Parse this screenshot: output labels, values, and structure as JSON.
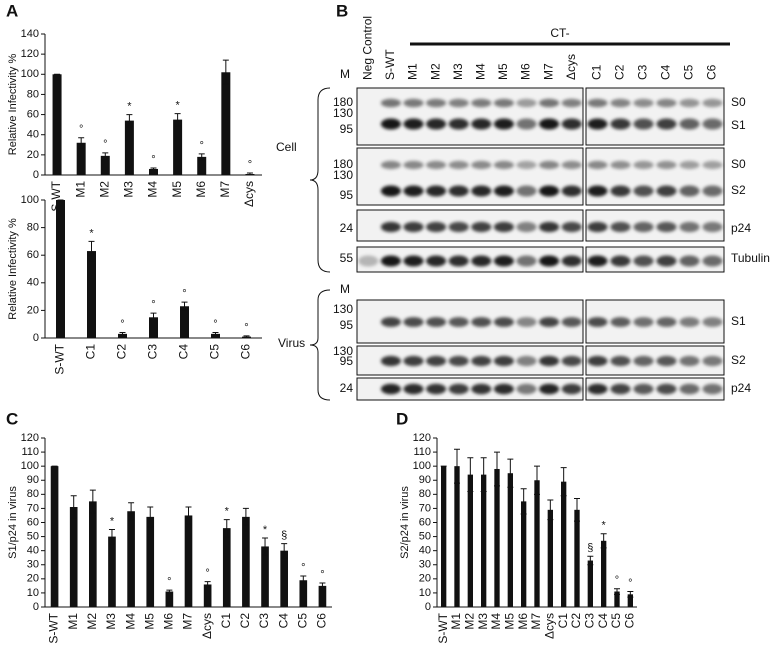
{
  "panel_labels": [
    "A",
    "B",
    "C",
    "D"
  ],
  "chart_data": [
    {
      "type": "bar",
      "y_label": "Relative Infectivity %",
      "side_label": "Cell",
      "color": "#111111",
      "categories": [
        "S-WT",
        "M1",
        "M2",
        "M3",
        "M4",
        "M5",
        "M6",
        "M7",
        "Δcys"
      ],
      "values": [
        100,
        32,
        19,
        54,
        6,
        55,
        18,
        102,
        1
      ],
      "errors": [
        0,
        5,
        3,
        6,
        1,
        6,
        3,
        12,
        1
      ],
      "markers": [
        null,
        "°",
        "°",
        "*",
        "°",
        "*",
        "°",
        null,
        "°"
      ],
      "ylim": [
        0,
        140
      ],
      "yticks": [
        0,
        20,
        40,
        60,
        80,
        100,
        120,
        140
      ]
    },
    {
      "type": "bar",
      "y_label": "Relative Infectivity %",
      "side_label": "Virus",
      "color": "#111111",
      "categories": [
        "S-WT",
        "C1",
        "C2",
        "C3",
        "C4",
        "C5",
        "C6"
      ],
      "values": [
        100,
        63,
        3,
        15,
        23,
        3,
        1
      ],
      "errors": [
        0,
        7,
        1,
        3,
        3,
        1,
        0.5
      ],
      "markers": [
        null,
        "*",
        "°",
        "°",
        "°",
        "°",
        "°"
      ],
      "ylim": [
        0,
        100
      ],
      "yticks": [
        0,
        20,
        40,
        60,
        80,
        100
      ]
    },
    {
      "type": "bar",
      "y_label": "S1/p24 in virus",
      "color": "#111111",
      "categories": [
        "S-WT",
        "M1",
        "M2",
        "M3",
        "M4",
        "M5",
        "M6",
        "M7",
        "Δcys",
        "C1",
        "C2",
        "C3",
        "C4",
        "C5",
        "C6"
      ],
      "values": [
        100,
        71,
        75,
        50,
        68,
        64,
        11,
        65,
        16,
        56,
        64,
        43,
        40,
        19,
        15
      ],
      "errors": [
        0,
        8,
        8,
        5,
        6,
        7,
        1,
        6,
        2,
        6,
        6,
        6,
        5,
        3,
        2
      ],
      "markers": [
        null,
        null,
        null,
        "*",
        null,
        null,
        "°",
        null,
        "°",
        "*",
        null,
        "*",
        "§",
        "°",
        "°"
      ],
      "ylim": [
        0,
        120
      ],
      "yticks": [
        0,
        10,
        20,
        30,
        40,
        50,
        60,
        70,
        80,
        90,
        100,
        110,
        120
      ]
    },
    {
      "type": "bar",
      "y_label": "S2/p24 in virus",
      "color": "#111111",
      "categories": [
        "S-WT",
        "M1",
        "M2",
        "M3",
        "M4",
        "M5",
        "M6",
        "M7",
        "Δcys",
        "C1",
        "C2",
        "C3",
        "C4",
        "C5",
        "C6"
      ],
      "values": [
        100,
        100,
        94,
        94,
        98,
        95,
        75,
        90,
        69,
        89,
        69,
        33,
        47,
        11,
        9
      ],
      "errors": [
        0,
        12,
        12,
        12,
        12,
        10,
        9,
        10,
        7,
        10,
        8,
        3,
        5,
        2,
        2
      ],
      "markers": [
        null,
        null,
        null,
        null,
        null,
        null,
        null,
        null,
        null,
        null,
        null,
        "§",
        "*",
        "°",
        "°"
      ],
      "ylim": [
        0,
        120
      ],
      "yticks": [
        0,
        10,
        20,
        30,
        40,
        50,
        60,
        70,
        80,
        90,
        100,
        110,
        120
      ]
    }
  ],
  "blot": {
    "lanes_left": [
      "Neg Control",
      "S-WT",
      "M1",
      "M2",
      "M3",
      "M4",
      "M5",
      "M6",
      "M7",
      "Δcys"
    ],
    "lanes_right": [
      "C1",
      "C2",
      "C3",
      "C4",
      "C5",
      "C6"
    ],
    "group_label": "CT-",
    "marker_heads": [
      "M",
      "M"
    ],
    "rows": [
      {
        "markers": [
          180,
          130,
          95
        ],
        "bands": [
          "S0",
          "S1"
        ]
      },
      {
        "markers": [
          180,
          130,
          95
        ],
        "bands": [
          "S0",
          "S2"
        ]
      },
      {
        "markers": [
          24
        ],
        "bands": [
          "p24"
        ]
      },
      {
        "markers": [
          55
        ],
        "bands": [
          "Tubulin"
        ]
      },
      {
        "markers": [
          130,
          95
        ],
        "bands": [
          "S1"
        ]
      },
      {
        "markers": [
          130,
          95
        ],
        "bands": [
          "S2"
        ]
      },
      {
        "markers": [
          24
        ],
        "bands": [
          "p24"
        ]
      }
    ]
  }
}
